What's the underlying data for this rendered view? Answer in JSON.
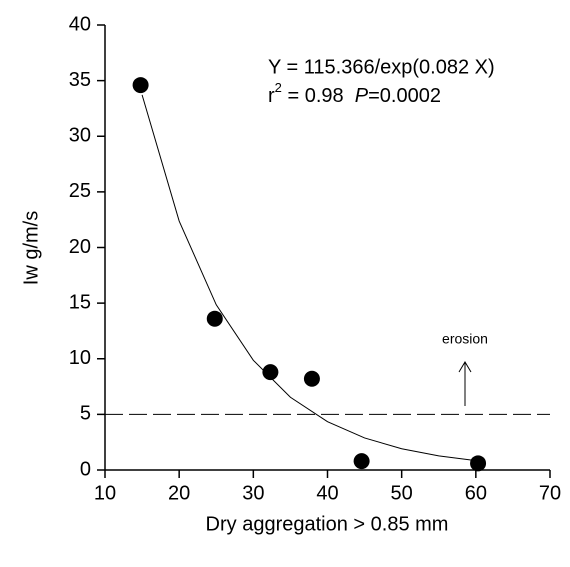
{
  "chart_data": {
    "type": "scatter",
    "xlabel": "Dry aggregation > 0.85 mm",
    "ylabel": "Iw g/m/s",
    "x": [
      14.8,
      24.8,
      32.3,
      37.9,
      44.6,
      60.3
    ],
    "values": [
      34.6,
      13.6,
      8.8,
      8.2,
      0.8,
      0.6
    ],
    "color": "#000000",
    "fit": {
      "x": [
        15,
        20,
        25,
        30,
        35,
        40,
        45,
        50,
        55,
        60
      ],
      "values": [
        33.72,
        22.38,
        14.85,
        9.86,
        6.54,
        4.34,
        2.88,
        1.91,
        1.27,
        0.84
      ]
    },
    "hline": 5,
    "equation": "Y = 115.366/exp(0.082 X)",
    "stats": [
      "r",
      "2",
      " = 0.98  ",
      "P",
      "=0.0002"
    ],
    "annotation": "erosion",
    "xlim": [
      10,
      70
    ],
    "xticks": [
      10,
      20,
      30,
      40,
      50,
      60,
      70
    ],
    "ylim": [
      0,
      40
    ],
    "yticks": [
      0,
      5,
      10,
      15,
      20,
      25,
      30,
      35,
      40
    ]
  }
}
